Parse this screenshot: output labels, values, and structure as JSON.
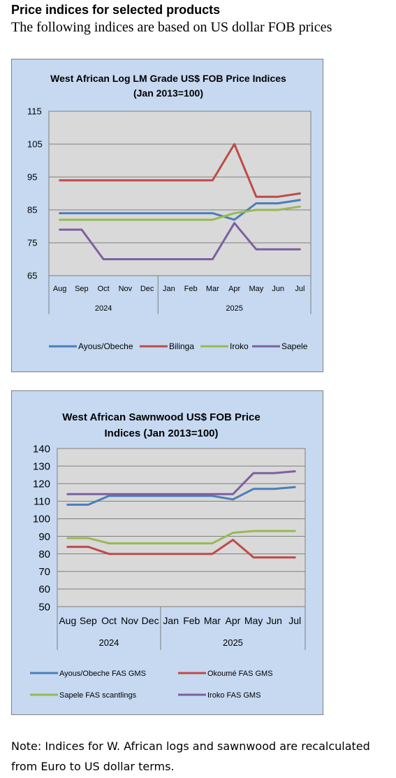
{
  "heading": "Price indices for selected products",
  "subheading": "The following indices are based on US dollar FOB prices",
  "note": "Note: Indices for W. African logs and sawnwood are recalculated from Euro to US dollar terms.",
  "chart_data": [
    {
      "type": "line",
      "title": "West African Log LM Grade US$ FOB Price Indices (Jan 2013=100)",
      "title_lines": [
        "West African Log LM Grade US$ FOB Price Indices",
        "(Jan 2013=100)"
      ],
      "categories": [
        "Aug",
        "Sep",
        "Oct",
        "Nov",
        "Dec",
        "Jan",
        "Feb",
        "Mar",
        "Apr",
        "May",
        "Jun",
        "Jul"
      ],
      "year_groups": [
        {
          "label": "2024",
          "count": 5
        },
        {
          "label": "2025",
          "count": 7
        }
      ],
      "ylim": [
        65,
        115
      ],
      "yticks": [
        65,
        75,
        85,
        95,
        105,
        115
      ],
      "grid": true,
      "legend_position": "bottom",
      "series": [
        {
          "name": "Ayous/Obeche",
          "color": "#4a7ebb",
          "values": [
            84,
            84,
            84,
            84,
            84,
            84,
            84,
            84,
            82,
            87,
            87,
            88
          ]
        },
        {
          "name": "Bilinga",
          "color": "#be4b48",
          "values": [
            94,
            94,
            94,
            94,
            94,
            94,
            94,
            94,
            105,
            89,
            89,
            90
          ]
        },
        {
          "name": "Iroko",
          "color": "#98b954",
          "values": [
            82,
            82,
            82,
            82,
            82,
            82,
            82,
            82,
            84,
            85,
            85,
            86
          ]
        },
        {
          "name": "Sapele",
          "color": "#7d60a0",
          "values": [
            79,
            79,
            70,
            70,
            70,
            70,
            70,
            70,
            81,
            73,
            73,
            73
          ]
        }
      ]
    },
    {
      "type": "line",
      "title": "West African Sawnwood US$ FOB Price Indices (Jan 2013=100)",
      "title_lines": [
        "West African Sawnwood US$ FOB Price",
        "Indices (Jan 2013=100)"
      ],
      "categories": [
        "Aug",
        "Sep",
        "Oct",
        "Nov",
        "Dec",
        "Jan",
        "Feb",
        "Mar",
        "Apr",
        "May",
        "Jun",
        "Jul"
      ],
      "year_groups": [
        {
          "label": "2024",
          "count": 5
        },
        {
          "label": "2025",
          "count": 7
        }
      ],
      "ylim": [
        50,
        140
      ],
      "yticks": [
        50,
        60,
        70,
        80,
        90,
        100,
        110,
        120,
        130,
        140
      ],
      "grid": true,
      "legend_position": "bottom",
      "series": [
        {
          "name": "Ayous/Obeche  FAS GMS",
          "color": "#4a7ebb",
          "values": [
            108,
            108,
            113,
            113,
            113,
            113,
            113,
            113,
            111,
            117,
            117,
            118
          ]
        },
        {
          "name": "Okoumé  FAS GMS",
          "color": "#be4b48",
          "values": [
            84,
            84,
            80,
            80,
            80,
            80,
            80,
            80,
            88,
            78,
            78,
            78
          ]
        },
        {
          "name": "Sapele FAS scantlings",
          "color": "#98b954",
          "values": [
            89,
            89,
            86,
            86,
            86,
            86,
            86,
            86,
            92,
            93,
            93,
            93
          ]
        },
        {
          "name": "Iroko FAS GMS",
          "color": "#7d60a0",
          "values": [
            114,
            114,
            114,
            114,
            114,
            114,
            114,
            114,
            114,
            126,
            126,
            127
          ]
        }
      ]
    }
  ]
}
